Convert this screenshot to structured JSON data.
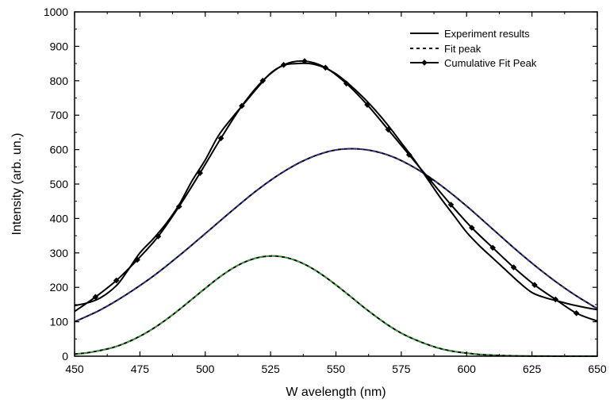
{
  "chart_data": {
    "type": "line",
    "title": "",
    "xlabel": "W avelength (nm)",
    "ylabel": "Intensity (arb. un.)",
    "xlim": [
      450,
      650
    ],
    "ylim": [
      0,
      1000
    ],
    "x_ticks": [
      450,
      475,
      500,
      525,
      550,
      575,
      600,
      625,
      650
    ],
    "y_ticks": [
      0,
      100,
      200,
      300,
      400,
      500,
      600,
      700,
      800,
      900,
      1000
    ],
    "grid": false,
    "legend_position": "top-right",
    "colors": {
      "axis": "#000000",
      "line": "#000000",
      "fit_accent": "#1a8a1a",
      "fit_accent2": "#1a1a8a"
    },
    "series": [
      {
        "name": "Experiment results",
        "style": "solid",
        "x": [
          450,
          455,
          460,
          466,
          470,
          475,
          480,
          485,
          490,
          495,
          500,
          505,
          510,
          515,
          520,
          525,
          530,
          535,
          540,
          545,
          550,
          555,
          560,
          565,
          570,
          575,
          580,
          585,
          590,
          595,
          600,
          605,
          610,
          615,
          620,
          625,
          630,
          635,
          640,
          645,
          650
        ],
        "y": [
          147,
          155,
          170,
          205,
          245,
          300,
          340,
          385,
          440,
          510,
          570,
          640,
          690,
          735,
          780,
          822,
          845,
          850,
          850,
          840,
          820,
          790,
          755,
          715,
          670,
          620,
          570,
          515,
          460,
          410,
          360,
          320,
          285,
          250,
          215,
          185,
          170,
          160,
          150,
          142,
          135
        ]
      },
      {
        "name": "Fit peak",
        "style": "dashed",
        "accent": "#1a1a8a",
        "x": [
          450,
          460,
          470,
          480,
          490,
          500,
          510,
          520,
          530,
          540,
          550,
          560,
          570,
          580,
          590,
          600,
          610,
          620,
          630,
          640,
          650
        ],
        "y": [
          100,
          135,
          180,
          232,
          292,
          356,
          421,
          483,
          536,
          576,
          599,
          601,
          584,
          548,
          497,
          436,
          369,
          302,
          240,
          185,
          138
        ]
      },
      {
        "name": "Fit peak",
        "style": "dashed",
        "accent": "#1a8a1a",
        "x": [
          450,
          455,
          460,
          465,
          470,
          475,
          480,
          485,
          490,
          495,
          500,
          505,
          510,
          515,
          520,
          525,
          530,
          535,
          540,
          545,
          550,
          555,
          560,
          565,
          570,
          575,
          580,
          585,
          590,
          595,
          600,
          605,
          610,
          615,
          620,
          625,
          630,
          635,
          640,
          645,
          650
        ],
        "y": [
          6,
          10,
          17,
          26,
          40,
          58,
          80,
          106,
          135,
          166,
          197,
          227,
          253,
          273,
          286,
          291,
          288,
          277,
          259,
          235,
          207,
          177,
          146,
          117,
          90,
          67,
          49,
          34,
          22,
          14,
          9,
          5,
          3,
          1.5,
          0.8,
          0.4,
          0.2,
          0.1,
          0,
          0,
          0
        ]
      },
      {
        "name": "Cumulative Fit Peak",
        "style": "solid-diamond",
        "x": [
          450,
          458,
          466,
          474,
          482,
          490,
          498,
          506,
          514,
          522,
          530,
          538,
          546,
          554,
          562,
          570,
          578,
          586,
          594,
          602,
          610,
          618,
          626,
          634,
          642,
          650
        ],
        "y": [
          130,
          172,
          220,
          280,
          348,
          435,
          532,
          633,
          727,
          800,
          846,
          857,
          838,
          792,
          730,
          658,
          585,
          512,
          440,
          373,
          315,
          258,
          207,
          165,
          125,
          102
        ]
      }
    ],
    "legend": [
      {
        "label": "Experiment results",
        "style": "solid"
      },
      {
        "label": "Fit peak",
        "style": "dashed"
      },
      {
        "label": "Cumulative Fit Peak",
        "style": "solid-diamond"
      }
    ]
  }
}
